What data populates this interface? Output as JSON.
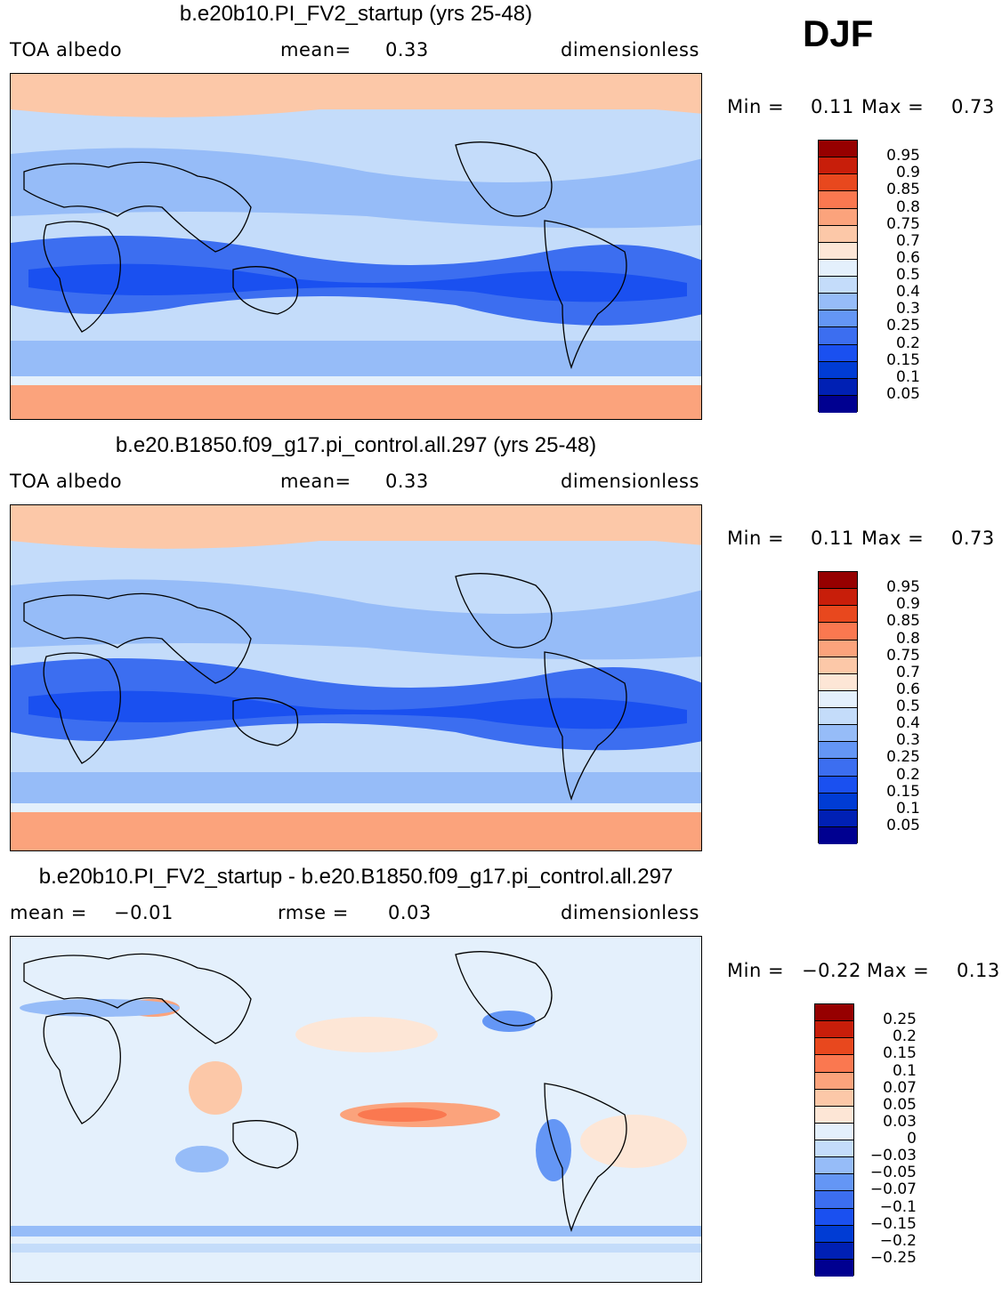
{
  "season": "DJF",
  "colors": {
    "abs_scale": [
      "#000090",
      "#0020b4",
      "#003cd4",
      "#1a50f0",
      "#3c6ef0",
      "#6496f5",
      "#96bcf8",
      "#c4dcfa",
      "#e4f0fc",
      "#fde6d6",
      "#fcc8a8",
      "#fba37c",
      "#fa7850",
      "#e8481e",
      "#c81e0a",
      "#960000"
    ],
    "diff_scale": [
      "#000090",
      "#0020b4",
      "#003cd4",
      "#1a50f0",
      "#3c6ef0",
      "#6496f5",
      "#96bcf8",
      "#c4dcfa",
      "#e4f0fc",
      "#fde6d6",
      "#fcc8a8",
      "#fba37c",
      "#fa7850",
      "#e8481e",
      "#c81e0a",
      "#960000"
    ]
  },
  "panels": [
    {
      "title": "b.e20b10.PI_FV2_startup (yrs 25-48)",
      "left_label": "TOA  albedo",
      "mid_label": "mean=",
      "mid_value": "0.33",
      "units": "dimensionless",
      "min_label": "Min  =",
      "min_value": "0.11",
      "max_label": "Max  =",
      "max_value": "0.73",
      "legend_ticks": [
        "0.95",
        "0.9",
        "0.85",
        "0.8",
        "0.75",
        "0.7",
        "0.6",
        "0.5",
        "0.4",
        "0.3",
        "0.25",
        "0.2",
        "0.15",
        "0.1",
        "0.05"
      ]
    },
    {
      "title": "b.e20.B1850.f09_g17.pi_control.all.297 (yrs 25-48)",
      "left_label": "TOA  albedo",
      "mid_label": "mean=",
      "mid_value": "0.33",
      "units": "dimensionless",
      "min_label": "Min  =",
      "min_value": "0.11",
      "max_label": "Max  =",
      "max_value": "0.73",
      "legend_ticks": [
        "0.95",
        "0.9",
        "0.85",
        "0.8",
        "0.75",
        "0.7",
        "0.6",
        "0.5",
        "0.4",
        "0.3",
        "0.25",
        "0.2",
        "0.15",
        "0.1",
        "0.05"
      ]
    },
    {
      "title": "b.e20b10.PI_FV2_startup - b.e20.B1850.f09_g17.pi_control.all.297",
      "left_label": "mean  =",
      "left_value": "−0.01",
      "mid_label": "rmse  =",
      "mid_value": "0.03",
      "units": "dimensionless",
      "min_label": "Min  =",
      "min_value": "−0.22",
      "max_label": "Max  =",
      "max_value": "0.13",
      "legend_ticks": [
        "0.25",
        "0.2",
        "0.15",
        "0.1",
        "0.07",
        "0.05",
        "0.03",
        "0",
        "−0.03",
        "−0.05",
        "−0.07",
        "−0.1",
        "−0.15",
        "−0.2",
        "−0.25"
      ]
    }
  ]
}
